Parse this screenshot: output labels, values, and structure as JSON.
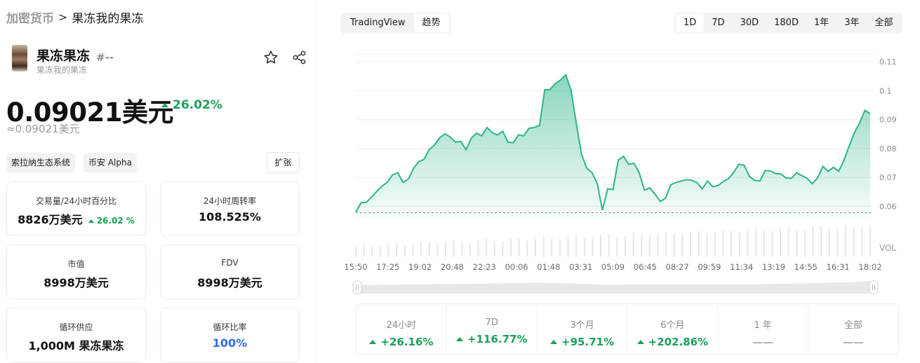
{
  "breadcrumb": {
    "root": "加密货币",
    "separator": ">",
    "current": "果冻我的果冻"
  },
  "token": {
    "name": "果冻果冻",
    "rank": "#--",
    "subtitle": "果冻我的果冻"
  },
  "price": {
    "value": "0.09021美元",
    "change": "26.02%",
    "approx": "≈0.09021美元"
  },
  "tags": [
    "索拉纳生态系统",
    "币安 Alpha"
  ],
  "expand_label": "扩张",
  "stats": [
    {
      "label": "交易量/24小时百分比",
      "value": "8826万美元",
      "change": "26.02 %"
    },
    {
      "label": "24小时周转率",
      "value": "108.525%"
    },
    {
      "label": "市值",
      "value": "8998万美元"
    },
    {
      "label": "FDV",
      "value": "8998万美元"
    },
    {
      "label": "循环供应",
      "value": "1,000M 果冻果冻"
    },
    {
      "label": "循环比率",
      "value": "100%"
    }
  ],
  "chart_toggle": {
    "options": [
      "TradingView",
      "趋势"
    ],
    "active": 0
  },
  "ranges": {
    "options": [
      "1D",
      "7D",
      "30D",
      "180D",
      "1年",
      "3年",
      "全部"
    ],
    "active": 0
  },
  "colors": {
    "up": "#1aa05a",
    "line": "#2db38c",
    "accent_blue": "#2f6cf6"
  },
  "chart_data": {
    "type": "area",
    "y_ticks": [
      "0.11",
      "0.1",
      "0.09",
      "0.08",
      "0.07",
      "0.06"
    ],
    "ylim": [
      0.0555,
      0.112
    ],
    "volume_label": "VOL",
    "x_ticks": [
      "15:50",
      "17:25",
      "19:02",
      "20:48",
      "22:23",
      "00:06",
      "01:48",
      "03:31",
      "05:09",
      "06:45",
      "08:27",
      "09:59",
      "11:34",
      "13:19",
      "14:55",
      "16:31",
      "18:02"
    ],
    "reference_price": 0.0578,
    "price": [
      0.058,
      0.0612,
      0.0614,
      0.0632,
      0.0652,
      0.067,
      0.0683,
      0.0709,
      0.0716,
      0.0683,
      0.0694,
      0.0731,
      0.0755,
      0.0762,
      0.0797,
      0.0812,
      0.0838,
      0.0851,
      0.084,
      0.0822,
      0.0825,
      0.0796,
      0.0836,
      0.0853,
      0.0844,
      0.0873,
      0.0855,
      0.0847,
      0.086,
      0.0822,
      0.082,
      0.0848,
      0.0844,
      0.087,
      0.0873,
      0.088,
      0.1003,
      0.1004,
      0.1025,
      0.1037,
      0.1055,
      0.1003,
      0.0889,
      0.0781,
      0.0732,
      0.0717,
      0.0678,
      0.0587,
      0.0661,
      0.0658,
      0.076,
      0.0773,
      0.0745,
      0.0749,
      0.0716,
      0.0656,
      0.0664,
      0.0642,
      0.0617,
      0.0628,
      0.0675,
      0.0682,
      0.0688,
      0.0692,
      0.069,
      0.0682,
      0.066,
      0.0688,
      0.0668,
      0.0672,
      0.0686,
      0.0696,
      0.0717,
      0.0746,
      0.0742,
      0.0703,
      0.069,
      0.0688,
      0.0724,
      0.0722,
      0.0713,
      0.0712,
      0.0698,
      0.0697,
      0.0716,
      0.0706,
      0.0697,
      0.0678,
      0.0699,
      0.0738,
      0.0721,
      0.0735,
      0.0721,
      0.0759,
      0.0809,
      0.0855,
      0.0889,
      0.0932,
      0.0921
    ]
  },
  "performance": [
    {
      "label": "24小时",
      "value": "+26.16%"
    },
    {
      "label": "7D",
      "value": "+116.77%"
    },
    {
      "label": "3个月",
      "value": "+95.71%"
    },
    {
      "label": "6个月",
      "value": "+202.86%"
    },
    {
      "label": "1 年",
      "value": "——"
    },
    {
      "label": "全部",
      "value": "——"
    }
  ]
}
